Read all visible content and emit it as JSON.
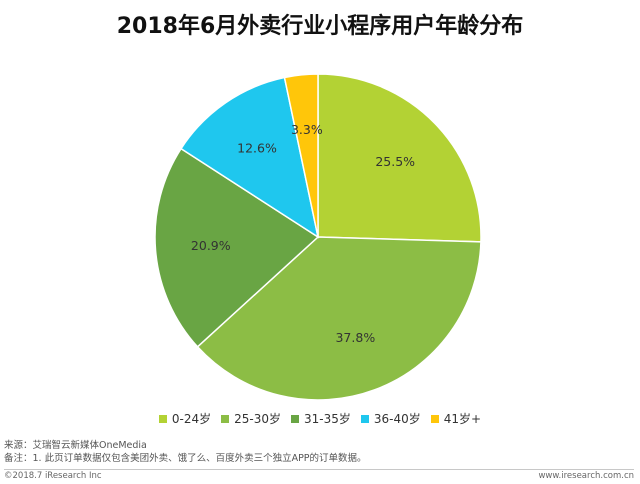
{
  "chart_data": {
    "type": "pie",
    "title": "2018年6月外卖行业小程序用户年龄分布",
    "categories": [
      "0-24岁",
      "25-30岁",
      "31-35岁",
      "36-40岁",
      "41岁+"
    ],
    "values": [
      25.5,
      37.8,
      20.9,
      12.6,
      3.3
    ],
    "labels": [
      "25.5%",
      "37.8%",
      "20.9%",
      "12.6%",
      "3.3%"
    ],
    "colors": [
      "#b3d234",
      "#8cbd45",
      "#69a544",
      "#1fc7ee",
      "#ffc60a"
    ],
    "legend_position": "bottom"
  },
  "footer": {
    "source": "来源：艾瑞智云新媒体OneMedia",
    "note": "备注：1. 此页订单数据仅包含美团外卖、饿了么、百度外卖三个独立APP的订单数据。",
    "copyright": "©2018.7 iResearch Inc",
    "website": "www.iresearch.com.cn"
  }
}
